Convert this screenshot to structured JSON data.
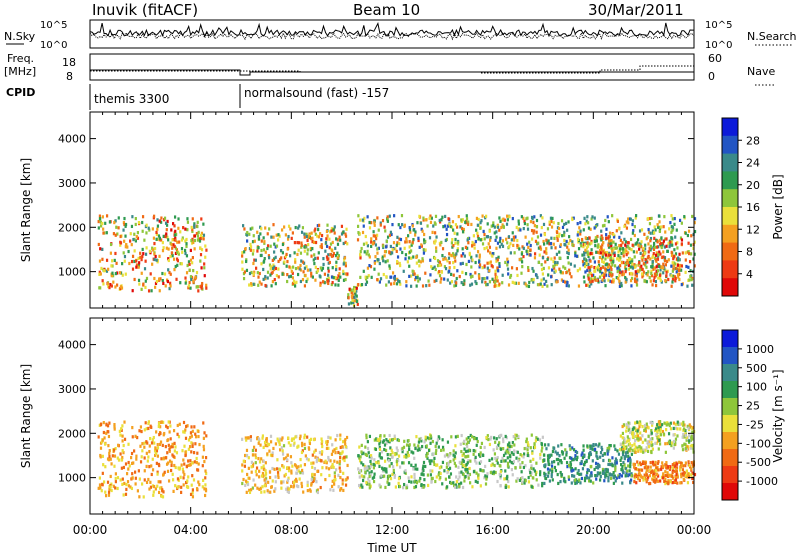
{
  "header": {
    "station": "Inuvik (fitACF)",
    "beam": "Beam 10",
    "date": "30/Mar/2011"
  },
  "noise_panel": {
    "left_label": "N.Sky",
    "right_label": "N.Search",
    "left_ticks": [
      "10^5",
      "10^0"
    ],
    "right_ticks": [
      "10^5",
      "10^0"
    ]
  },
  "freq_panel": {
    "left_label_1": "Freq.",
    "left_label_2": "[MHz]",
    "right_label": "Nave",
    "left_ticks": [
      "18",
      "8"
    ],
    "right_ticks": [
      "60",
      "0"
    ]
  },
  "cpid_panel": {
    "label": "CPID",
    "modes": [
      {
        "text": "themis 3300",
        "start_hour": 0
      },
      {
        "text": "normalsound (fast) -157",
        "start_hour": 6
      }
    ]
  },
  "colors": {
    "scale": [
      "#0c1ad9",
      "#2255c4",
      "#3a8a8a",
      "#2e9a50",
      "#8ec63a",
      "#eae03a",
      "#f4a020",
      "#f06a14",
      "#ee3a14",
      "#e00808"
    ],
    "velocity_gray": "#c8c8c8"
  },
  "power_colorbar": {
    "label": "Power [dB]",
    "ticks": [
      "28",
      "24",
      "20",
      "16",
      "12",
      "8",
      "4"
    ]
  },
  "velocity_colorbar": {
    "label": "Velocity [m s⁻¹]",
    "ticks": [
      "1000",
      "500",
      "100",
      "25",
      "-25",
      "-100",
      "-500",
      "-1000"
    ]
  },
  "chart_data": [
    {
      "type": "heatmap",
      "name": "power",
      "ylabel": "Slant Range [km]",
      "xlim_hours": [
        0,
        24
      ],
      "ylim_km": [
        180,
        4600
      ],
      "y_ticks": [
        1000,
        2000,
        3000,
        4000
      ],
      "clim_db": [
        0,
        32
      ],
      "regions": [
        {
          "t": [
            0.3,
            4.6
          ],
          "r": [
            600,
            2300
          ],
          "peak_db": 30
        },
        {
          "t": [
            6.0,
            10.2
          ],
          "r": [
            700,
            2100
          ],
          "peak_db": 28
        },
        {
          "t": [
            10.2,
            10.6
          ],
          "r": [
            250,
            700
          ],
          "peak_db": 30
        },
        {
          "t": [
            10.6,
            24.0
          ],
          "r": [
            700,
            2300
          ],
          "peak_db": 26
        },
        {
          "t": [
            19.5,
            23.5
          ],
          "r": [
            800,
            1800
          ],
          "peak_db": 30
        }
      ]
    },
    {
      "type": "heatmap",
      "name": "velocity",
      "xlabel": "Time UT",
      "ylabel": "Slant Range [km]",
      "xlim_hours": [
        0,
        24
      ],
      "ylim_km": [
        180,
        4600
      ],
      "y_ticks": [
        1000,
        2000,
        3000,
        4000
      ],
      "x_ticks": [
        "00:00",
        "04:00",
        "08:00",
        "12:00",
        "16:00",
        "20:00",
        "00:00"
      ],
      "clim_ms": [
        -1000,
        1000
      ],
      "regions": [
        {
          "t": [
            0.3,
            4.6
          ],
          "r": [
            600,
            2300
          ],
          "v": -300
        },
        {
          "t": [
            6.0,
            10.2
          ],
          "r": [
            700,
            2000
          ],
          "v": -200
        },
        {
          "t": [
            10.6,
            18.0
          ],
          "r": [
            800,
            2000
          ],
          "v": 150
        },
        {
          "t": [
            18.0,
            21.5
          ],
          "r": [
            900,
            1800
          ],
          "v": 400
        },
        {
          "t": [
            21.5,
            24.0
          ],
          "r": [
            900,
            1400
          ],
          "v": -400
        },
        {
          "t": [
            21.0,
            24.0
          ],
          "r": [
            1600,
            2300
          ],
          "v": 0
        }
      ]
    }
  ]
}
